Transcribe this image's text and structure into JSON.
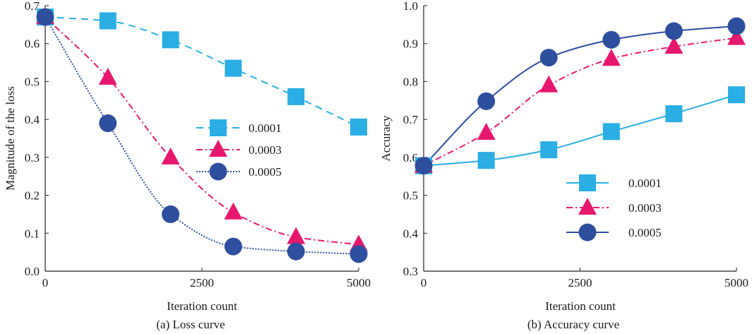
{
  "chart_data": [
    {
      "id": "loss",
      "type": "line",
      "caption": "(a) Loss curve",
      "xlabel": "Iteration count",
      "ylabel": "Magnitude of the loss",
      "xlim": [
        0,
        5000
      ],
      "ylim": [
        0.0,
        0.7
      ],
      "xticks": [
        0,
        2500,
        5000
      ],
      "xtick_labels": [
        "0",
        "2500",
        "5000"
      ],
      "yticks": [
        0.0,
        0.1,
        0.2,
        0.3,
        0.4,
        0.5,
        0.6,
        0.7
      ],
      "ytick_labels": [
        "0.0",
        "0.1",
        "0.2",
        "0.3",
        "0.4",
        "0.5",
        "0.6",
        "0.7"
      ],
      "legend_position": "center-right",
      "x": [
        0,
        1000,
        2000,
        3000,
        4000,
        5000
      ],
      "series": [
        {
          "name": "0.0001",
          "color": "#2aaee3",
          "marker": "square",
          "dash": "10,7",
          "values": [
            0.67,
            0.66,
            0.61,
            0.535,
            0.46,
            0.38
          ]
        },
        {
          "name": "0.0003",
          "color": "#e6186e",
          "marker": "triangle",
          "dash": "9,4,2,4",
          "values": [
            0.67,
            0.51,
            0.3,
            0.155,
            0.09,
            0.07
          ]
        },
        {
          "name": "0.0005",
          "color": "#2e4e9e",
          "marker": "circle",
          "dash": "2,2",
          "values": [
            0.67,
            0.39,
            0.15,
            0.065,
            0.052,
            0.045
          ]
        }
      ]
    },
    {
      "id": "accuracy",
      "type": "line",
      "caption": "(b) Accuracy curve",
      "xlabel": "Iteration count",
      "ylabel": "Accuracy",
      "xlim": [
        0,
        5000
      ],
      "ylim": [
        0.3,
        1.0
      ],
      "xticks": [
        0,
        2500,
        5000
      ],
      "xtick_labels": [
        "0",
        "2500",
        "5000"
      ],
      "yticks": [
        0.3,
        0.4,
        0.5,
        0.6,
        0.7,
        0.8,
        0.9,
        1.0
      ],
      "ytick_labels": [
        "0.3",
        "0.4",
        "0.5",
        "0.6",
        "0.7",
        "0.8",
        "0.9",
        "1.0"
      ],
      "legend_position": "lower-right",
      "x": [
        0,
        1000,
        2000,
        3000,
        4000,
        5000
      ],
      "series": [
        {
          "name": "0.0001",
          "color": "#2aaee3",
          "marker": "square",
          "dash": "",
          "values": [
            0.578,
            0.592,
            0.62,
            0.668,
            0.715,
            0.765
          ]
        },
        {
          "name": "0.0003",
          "color": "#e6186e",
          "marker": "triangle",
          "dash": "9,4,2,4",
          "values": [
            0.578,
            0.665,
            0.79,
            0.86,
            0.892,
            0.915
          ]
        },
        {
          "name": "0.0005",
          "color": "#2e4e9e",
          "marker": "circle",
          "dash": "",
          "values": [
            0.578,
            0.748,
            0.863,
            0.91,
            0.933,
            0.946
          ]
        }
      ]
    }
  ]
}
